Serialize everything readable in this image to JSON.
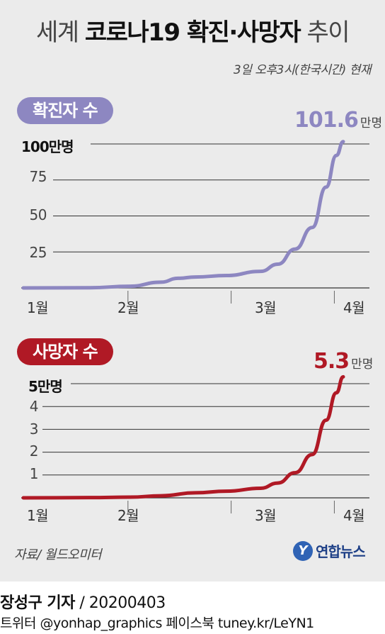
{
  "title": {
    "part1": "세계 ",
    "part2": "코로나19 확진·사망자",
    "part3": " 추이"
  },
  "as_of": "3일 오후3시(한국시간) 현재",
  "colors": {
    "confirmed": "#8d87c1",
    "deaths": "#b01925",
    "axis": "#333333"
  },
  "charts": {
    "confirmed": {
      "pill": "확진자 수",
      "top_label": "100만명",
      "ticks": [
        "75",
        "50",
        "25"
      ],
      "months": [
        "1월",
        "2월",
        "3월",
        "4월"
      ],
      "final_value": "101.6",
      "final_unit": "만명"
    },
    "deaths": {
      "pill": "사망자 수",
      "top_label": "5만명",
      "ticks": [
        "4",
        "3",
        "2",
        "1"
      ],
      "months": [
        "1월",
        "2월",
        "3월",
        "4월"
      ],
      "final_value": "5.3",
      "final_unit": "만명"
    }
  },
  "chart_data": [
    {
      "type": "line",
      "title": "확진자 수",
      "ylabel": "만명",
      "ylim": [
        0,
        100
      ],
      "yticks": [
        25,
        50,
        75,
        100
      ],
      "x_months": [
        "1월",
        "2월",
        "3월",
        "4월"
      ],
      "series": [
        {
          "name": "확진자 수",
          "x": [
            "1/1",
            "1/20",
            "2/1",
            "2/10",
            "2/15",
            "2/20",
            "2/29",
            "3/10",
            "3/15",
            "3/20",
            "3/25",
            "3/29",
            "4/1",
            "4/3"
          ],
          "values": [
            0,
            0.1,
            1.2,
            4.0,
            6.7,
            7.6,
            8.6,
            11.5,
            16.5,
            27.0,
            42.0,
            70.0,
            92.0,
            101.6
          ]
        }
      ]
    },
    {
      "type": "line",
      "title": "사망자 수",
      "ylabel": "만명",
      "ylim": [
        0,
        5
      ],
      "yticks": [
        1,
        2,
        3,
        4,
        5
      ],
      "x_months": [
        "1월",
        "2월",
        "3월",
        "4월"
      ],
      "series": [
        {
          "name": "사망자 수",
          "x": [
            "1/1",
            "1/20",
            "2/1",
            "2/10",
            "2/20",
            "2/29",
            "3/10",
            "3/15",
            "3/20",
            "3/25",
            "3/29",
            "4/1",
            "4/3"
          ],
          "values": [
            0,
            0.01,
            0.03,
            0.09,
            0.22,
            0.29,
            0.42,
            0.65,
            1.1,
            1.9,
            3.4,
            4.6,
            5.3
          ]
        }
      ]
    }
  ],
  "source": "자료/ 월드오미터",
  "logo": {
    "mark": "Y",
    "text": "연합뉴스"
  },
  "credit": {
    "reporter": "장성구 기자",
    "sep": " / ",
    "date": "20200403"
  },
  "social": "트위터 @yonhap_graphics  페이스북 tuney.kr/LeYN1"
}
